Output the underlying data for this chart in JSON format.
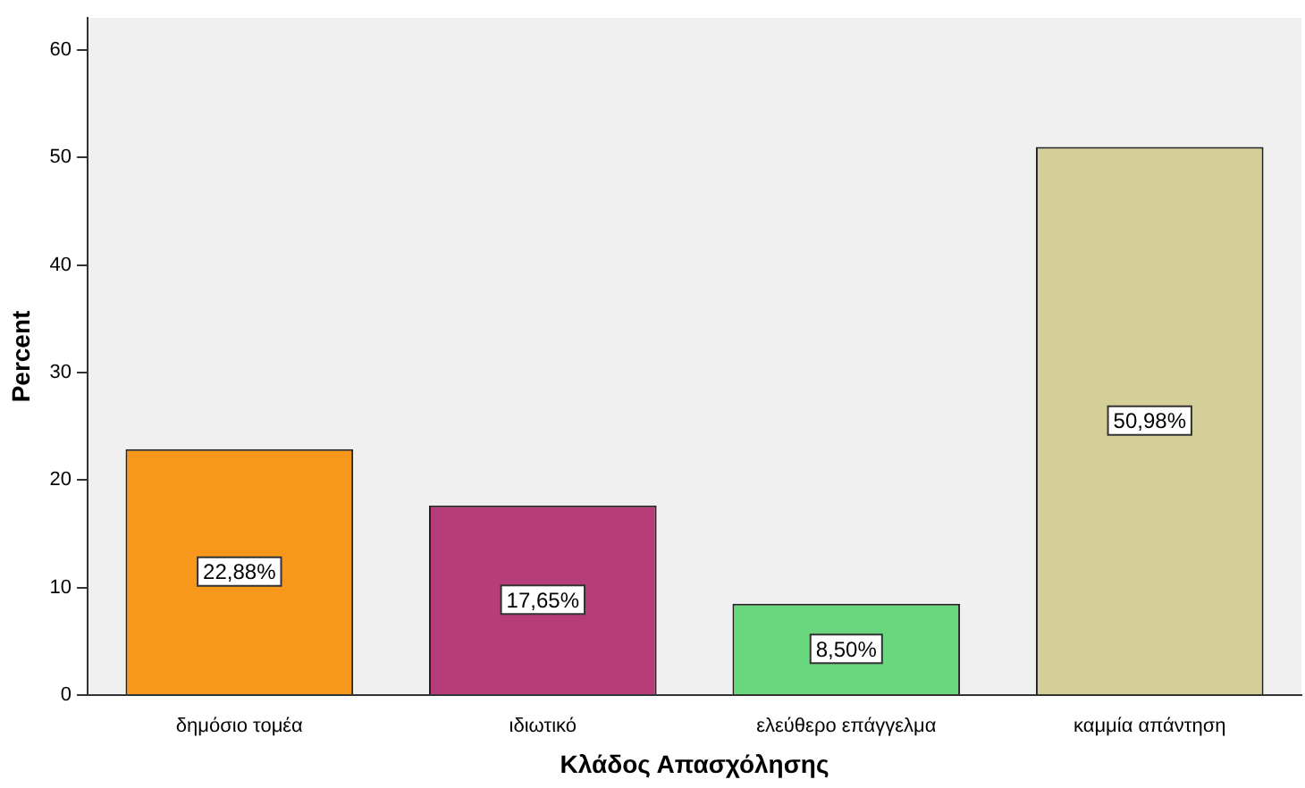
{
  "chart_data": {
    "type": "bar",
    "xlabel": "Κλάδος Απασχόλησης",
    "ylabel": "Percent",
    "categories": [
      "δημόσιο τομέα",
      "ιδιωτικό",
      "ελεύθερο επάγγελμα",
      "καμμία απάντηση"
    ],
    "values": [
      22.88,
      17.65,
      8.5,
      50.98
    ],
    "colors": [
      "#f7981d",
      "#b73c7a",
      "#6ad67e",
      "#d4cf98"
    ],
    "value_labels": [
      "22,88%",
      "17,65%",
      "8,50%",
      "50,98%"
    ],
    "ylim": [
      0,
      63
    ],
    "yticks": [
      0,
      10,
      20,
      30,
      40,
      50,
      60
    ],
    "grid": false,
    "legend": false
  }
}
